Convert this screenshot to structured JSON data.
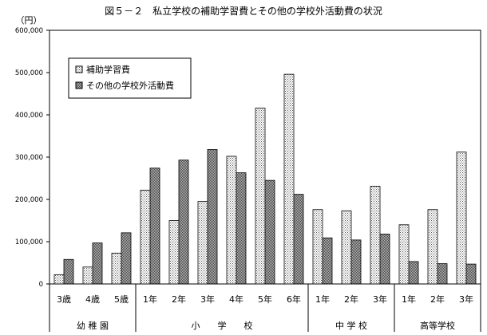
{
  "chart_data": {
    "type": "bar",
    "title": "図５－２　私立学校の補助学習費とその他の学校外活動費の状況",
    "ylabel": "（円）",
    "ylim": [
      0,
      600000
    ],
    "yticks": [
      0,
      100000,
      200000,
      300000,
      400000,
      500000,
      600000
    ],
    "ytick_labels": [
      "0",
      "100,000",
      "200,000",
      "300,000",
      "400,000",
      "500,000",
      "600,000"
    ],
    "categories": [
      "3歳",
      "4歳",
      "5歳",
      "1年",
      "2年",
      "3年",
      "4年",
      "5年",
      "6年",
      "1年",
      "2年",
      "3年",
      "1年",
      "2年",
      "3年"
    ],
    "groups": [
      {
        "label": "幼 稚 園",
        "start": 0,
        "end": 2
      },
      {
        "label": "小　　学　　校",
        "start": 3,
        "end": 8
      },
      {
        "label": "中 学 校",
        "start": 9,
        "end": 11
      },
      {
        "label": "高等学校",
        "start": 12,
        "end": 14
      }
    ],
    "series": [
      {
        "name": "補助学習費",
        "pattern": "dots",
        "values": [
          22000,
          40000,
          73000,
          222000,
          150000,
          195000,
          302000,
          416000,
          496000,
          176000,
          173000,
          231000,
          140000,
          176000,
          312000
        ]
      },
      {
        "name": "その他の学校外活動費",
        "pattern": "dense",
        "values": [
          58000,
          97000,
          121000,
          274000,
          293000,
          318000,
          263000,
          245000,
          212000,
          109000,
          104000,
          118000,
          53000,
          48000,
          47000
        ]
      }
    ],
    "legend_position": "top-left",
    "grid": false
  }
}
